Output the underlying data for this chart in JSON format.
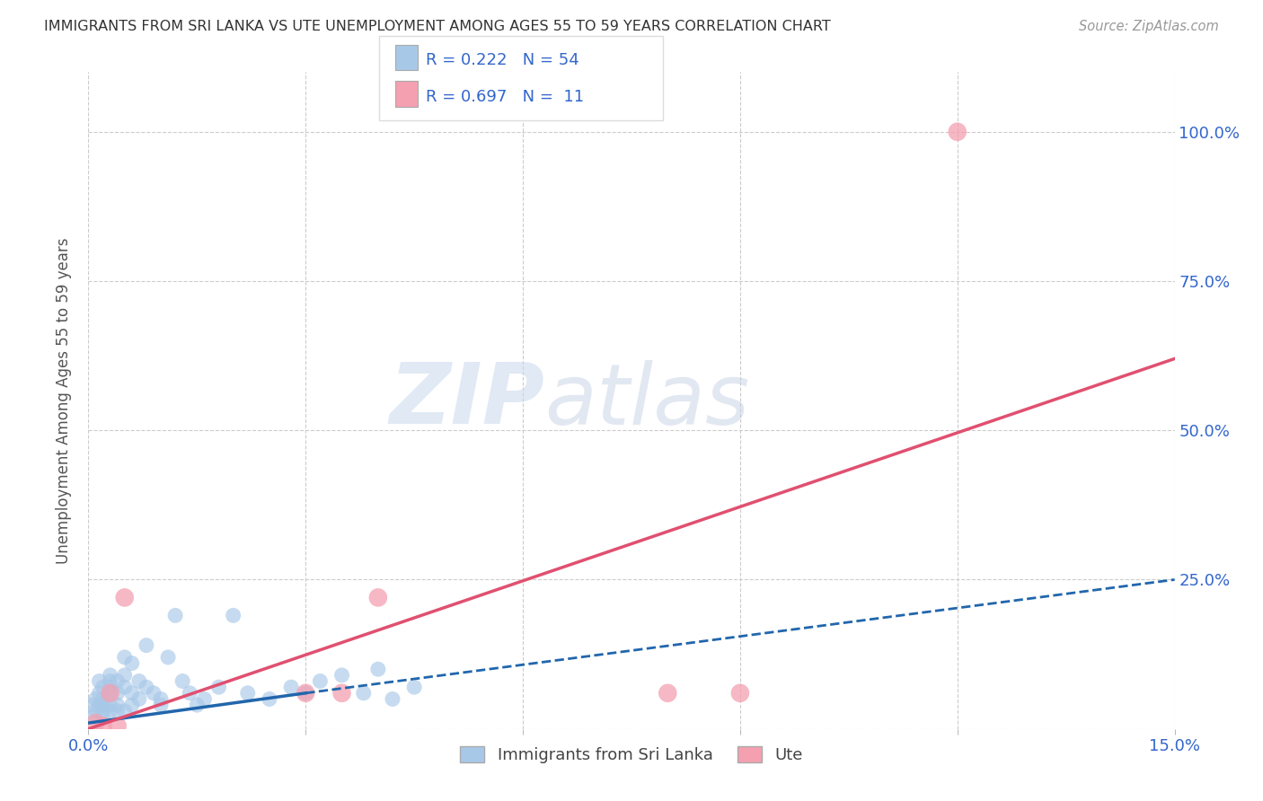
{
  "title": "IMMIGRANTS FROM SRI LANKA VS UTE UNEMPLOYMENT AMONG AGES 55 TO 59 YEARS CORRELATION CHART",
  "source": "Source: ZipAtlas.com",
  "ylabel": "Unemployment Among Ages 55 to 59 years",
  "xlim": [
    0.0,
    0.15
  ],
  "ylim": [
    0.0,
    1.1
  ],
  "xticks": [
    0.0,
    0.03,
    0.06,
    0.09,
    0.12,
    0.15
  ],
  "xticklabels": [
    "0.0%",
    "",
    "",
    "",
    "",
    "15.0%"
  ],
  "yticks": [
    0.0,
    0.25,
    0.5,
    0.75,
    1.0
  ],
  "yticklabels": [
    "",
    "25.0%",
    "50.0%",
    "75.0%",
    "100.0%"
  ],
  "blue_scatter_x": [
    0.0005,
    0.0005,
    0.001,
    0.001,
    0.0015,
    0.0015,
    0.0015,
    0.002,
    0.002,
    0.002,
    0.002,
    0.002,
    0.003,
    0.003,
    0.003,
    0.003,
    0.003,
    0.003,
    0.004,
    0.004,
    0.004,
    0.004,
    0.005,
    0.005,
    0.005,
    0.005,
    0.006,
    0.006,
    0.006,
    0.007,
    0.007,
    0.008,
    0.008,
    0.009,
    0.01,
    0.01,
    0.011,
    0.012,
    0.013,
    0.014,
    0.015,
    0.016,
    0.018,
    0.02,
    0.022,
    0.025,
    0.028,
    0.03,
    0.032,
    0.035,
    0.038,
    0.04,
    0.042,
    0.045
  ],
  "blue_scatter_y": [
    0.02,
    0.04,
    0.05,
    0.03,
    0.04,
    0.06,
    0.08,
    0.03,
    0.05,
    0.07,
    0.02,
    0.04,
    0.03,
    0.08,
    0.06,
    0.04,
    0.09,
    0.07,
    0.04,
    0.06,
    0.08,
    0.03,
    0.07,
    0.12,
    0.09,
    0.03,
    0.04,
    0.11,
    0.06,
    0.05,
    0.08,
    0.07,
    0.14,
    0.06,
    0.05,
    0.04,
    0.12,
    0.19,
    0.08,
    0.06,
    0.04,
    0.05,
    0.07,
    0.19,
    0.06,
    0.05,
    0.07,
    0.06,
    0.08,
    0.09,
    0.06,
    0.1,
    0.05,
    0.07
  ],
  "pink_scatter_x": [
    0.001,
    0.002,
    0.003,
    0.004,
    0.005,
    0.03,
    0.035,
    0.04,
    0.08,
    0.09,
    0.12
  ],
  "pink_scatter_y": [
    0.01,
    0.005,
    0.06,
    0.005,
    0.22,
    0.06,
    0.06,
    0.22,
    0.06,
    0.06,
    1.0
  ],
  "blue_solid_line_x": [
    0.0,
    0.03
  ],
  "blue_solid_line_y": [
    0.01,
    0.06
  ],
  "blue_dash_line_x": [
    0.03,
    0.15
  ],
  "blue_dash_line_y": [
    0.06,
    0.25
  ],
  "pink_line_x": [
    0.0,
    0.15
  ],
  "pink_line_y": [
    0.0,
    0.62
  ],
  "blue_color": "#a8c8e8",
  "pink_color": "#f4a0b0",
  "blue_line_color": "#2166ac",
  "pink_line_color": "#e05070",
  "r_blue": "0.222",
  "n_blue": "54",
  "r_pink": "0.697",
  "n_pink": "11",
  "legend_label_blue": "Immigrants from Sri Lanka",
  "legend_label_pink": "Ute",
  "watermark_zip": "ZIP",
  "watermark_atlas": "atlas",
  "background_color": "#ffffff",
  "grid_color": "#cccccc"
}
